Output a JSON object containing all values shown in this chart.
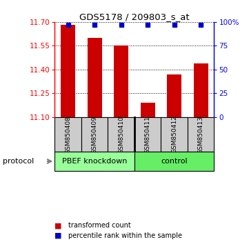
{
  "title": "GDS5178 / 209803_s_at",
  "samples": [
    "GSM850408",
    "GSM850409",
    "GSM850410",
    "GSM850411",
    "GSM850412",
    "GSM850413"
  ],
  "transformed_counts": [
    11.68,
    11.6,
    11.55,
    11.19,
    11.37,
    11.44
  ],
  "percentile_ranks": [
    97,
    97,
    97,
    97,
    97,
    97
  ],
  "ylim": [
    11.1,
    11.7
  ],
  "yticks": [
    11.1,
    11.25,
    11.4,
    11.55,
    11.7
  ],
  "right_yticks": [
    0,
    25,
    50,
    75,
    100
  ],
  "right_ylim": [
    0,
    100
  ],
  "bar_color": "#cc0000",
  "dot_color": "#0000cc",
  "sample_box_color": "#cccccc",
  "group1_color": "#99ff99",
  "group2_color": "#66ee66",
  "group1_label": "PBEF knockdown",
  "group2_label": "control",
  "protocol_label": "protocol",
  "legend_items": [
    {
      "label": "transformed count",
      "color": "#cc0000"
    },
    {
      "label": "percentile rank within the sample",
      "color": "#0000cc"
    }
  ]
}
